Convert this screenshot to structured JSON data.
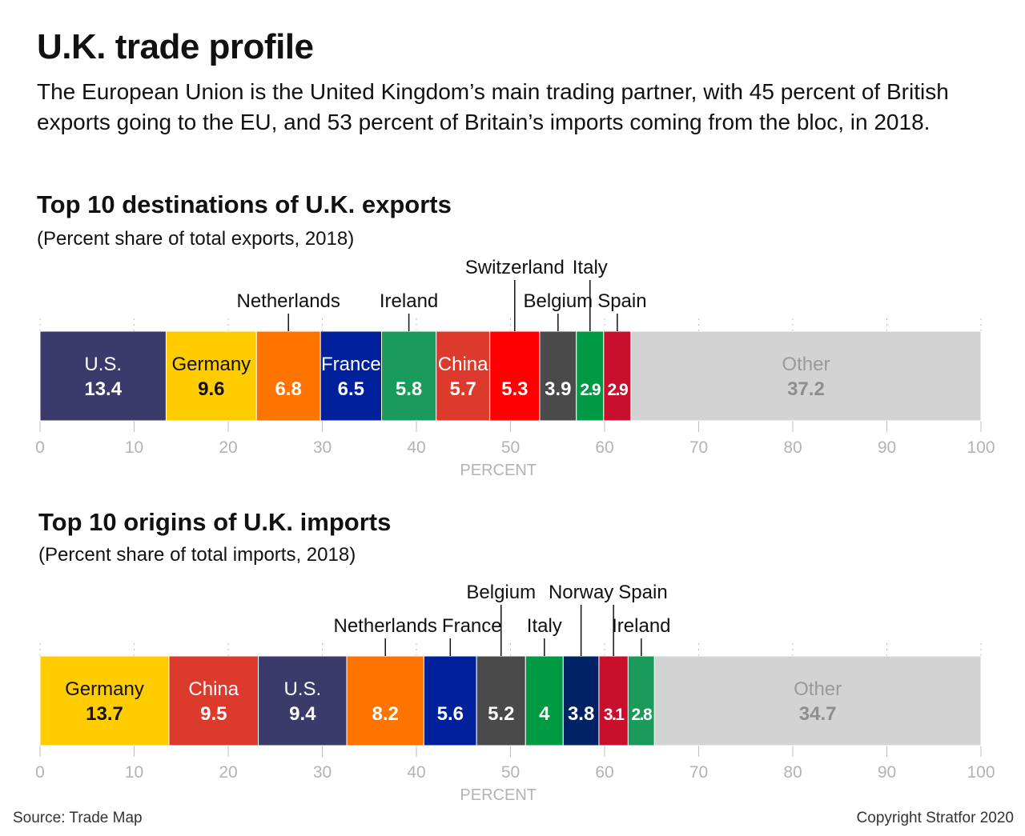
{
  "title": "U.K. trade profile",
  "subtitle": "The European Union is the United Kingdom’s main trading partner, with 45 percent of British exports going to the EU, and 53 percent of Britain’s imports coming from the bloc, in 2018.",
  "source": "Source: Trade Map",
  "copyright": "Copyright Stratfor 2020",
  "chart_data": [
    {
      "type": "bar",
      "orientation": "horizontal-stacked",
      "title": "Top 10 destinations of U.K. exports",
      "subtitle": "(Percent share of total exports, 2018)",
      "xlabel": "PERCENT",
      "xlim": [
        0,
        100
      ],
      "xticks": [
        0,
        10,
        20,
        30,
        40,
        50,
        60,
        70,
        80,
        90,
        100
      ],
      "grid": true,
      "series": [
        {
          "name": "U.S.",
          "value": 13.4,
          "color": "#3b3b6b",
          "label_position": "inside",
          "value_color": "#ffffff",
          "name_color": "#ffffff"
        },
        {
          "name": "Germany",
          "value": 9.6,
          "color": "#ffcc00",
          "label_position": "inside",
          "value_color": "#111111",
          "name_color": "#111111"
        },
        {
          "name": "Netherlands",
          "value": 6.8,
          "color": "#ff7300",
          "label_position": "above",
          "label_row": 1,
          "value_color": "#ffffff"
        },
        {
          "name": "France",
          "value": 6.5,
          "color": "#00219b",
          "label_position": "inside",
          "value_color": "#ffffff",
          "name_color": "#ffffff"
        },
        {
          "name": "Ireland",
          "value": 5.8,
          "color": "#1a9b5c",
          "label_position": "above",
          "label_row": 1,
          "value_color": "#ffffff"
        },
        {
          "name": "China",
          "value": 5.7,
          "color": "#dd3a2e",
          "label_position": "inside",
          "value_color": "#ffffff",
          "name_color": "#ffffff"
        },
        {
          "name": "Switzerland",
          "value": 5.3,
          "color": "#ff0000",
          "label_position": "above",
          "label_row": 2,
          "value_color": "#ffffff"
        },
        {
          "name": "Belgium",
          "value": 3.9,
          "color": "#4a4a4a",
          "label_position": "above",
          "label_row": 1,
          "value_color": "#ffffff"
        },
        {
          "name": "Italy",
          "value": 2.9,
          "color": "#009944",
          "label_position": "above",
          "label_row": 2,
          "value_color": "#ffffff"
        },
        {
          "name": "Spain",
          "value": 2.9,
          "color": "#c8102e",
          "label_position": "above",
          "label_row": 1,
          "value_color": "#ffffff"
        },
        {
          "name": "Other",
          "value": 37.2,
          "color": "#d3d3d3",
          "label_position": "inside",
          "value_color": "#8e8e8e",
          "name_color": "#9a9a9a"
        }
      ]
    },
    {
      "type": "bar",
      "orientation": "horizontal-stacked",
      "title": "Top 10 origins of U.K. imports",
      "subtitle": "(Percent share of total imports, 2018)",
      "xlabel": "PERCENT",
      "xlim": [
        0,
        100
      ],
      "xticks": [
        0,
        10,
        20,
        30,
        40,
        50,
        60,
        70,
        80,
        90,
        100
      ],
      "grid": true,
      "series": [
        {
          "name": "Germany",
          "value": 13.7,
          "color": "#ffcc00",
          "label_position": "inside",
          "value_color": "#111111",
          "name_color": "#111111"
        },
        {
          "name": "China",
          "value": 9.5,
          "color": "#dd3a2e",
          "label_position": "inside",
          "value_color": "#ffffff",
          "name_color": "#ffffff"
        },
        {
          "name": "U.S.",
          "value": 9.4,
          "color": "#3b3b6b",
          "label_position": "inside",
          "value_color": "#ffffff",
          "name_color": "#ffffff"
        },
        {
          "name": "Netherlands",
          "value": 8.2,
          "color": "#ff7300",
          "label_position": "above",
          "label_row": 1,
          "value_color": "#ffffff"
        },
        {
          "name": "France",
          "value": 5.6,
          "color": "#00219b",
          "label_position": "above",
          "label_row": 1,
          "value_color": "#ffffff"
        },
        {
          "name": "Belgium",
          "value": 5.2,
          "color": "#4a4a4a",
          "label_position": "above",
          "label_row": 2,
          "value_color": "#ffffff"
        },
        {
          "name": "Italy",
          "value": 4,
          "color": "#009944",
          "label_position": "above",
          "label_row": 1,
          "value_color": "#ffffff"
        },
        {
          "name": "Norway",
          "value": 3.8,
          "color": "#002366",
          "label_position": "above",
          "label_row": 2,
          "value_color": "#ffffff"
        },
        {
          "name": "Spain",
          "value": 3.1,
          "color": "#c8102e",
          "label_position": "above",
          "label_row": 2,
          "value_color": "#ffffff"
        },
        {
          "name": "Ireland",
          "value": 2.8,
          "color": "#1a9b5c",
          "label_position": "above",
          "label_row": 1,
          "value_color": "#ffffff"
        },
        {
          "name": "Other",
          "value": 34.7,
          "color": "#d3d3d3",
          "label_position": "inside",
          "value_color": "#8e8e8e",
          "name_color": "#9a9a9a"
        }
      ]
    }
  ]
}
